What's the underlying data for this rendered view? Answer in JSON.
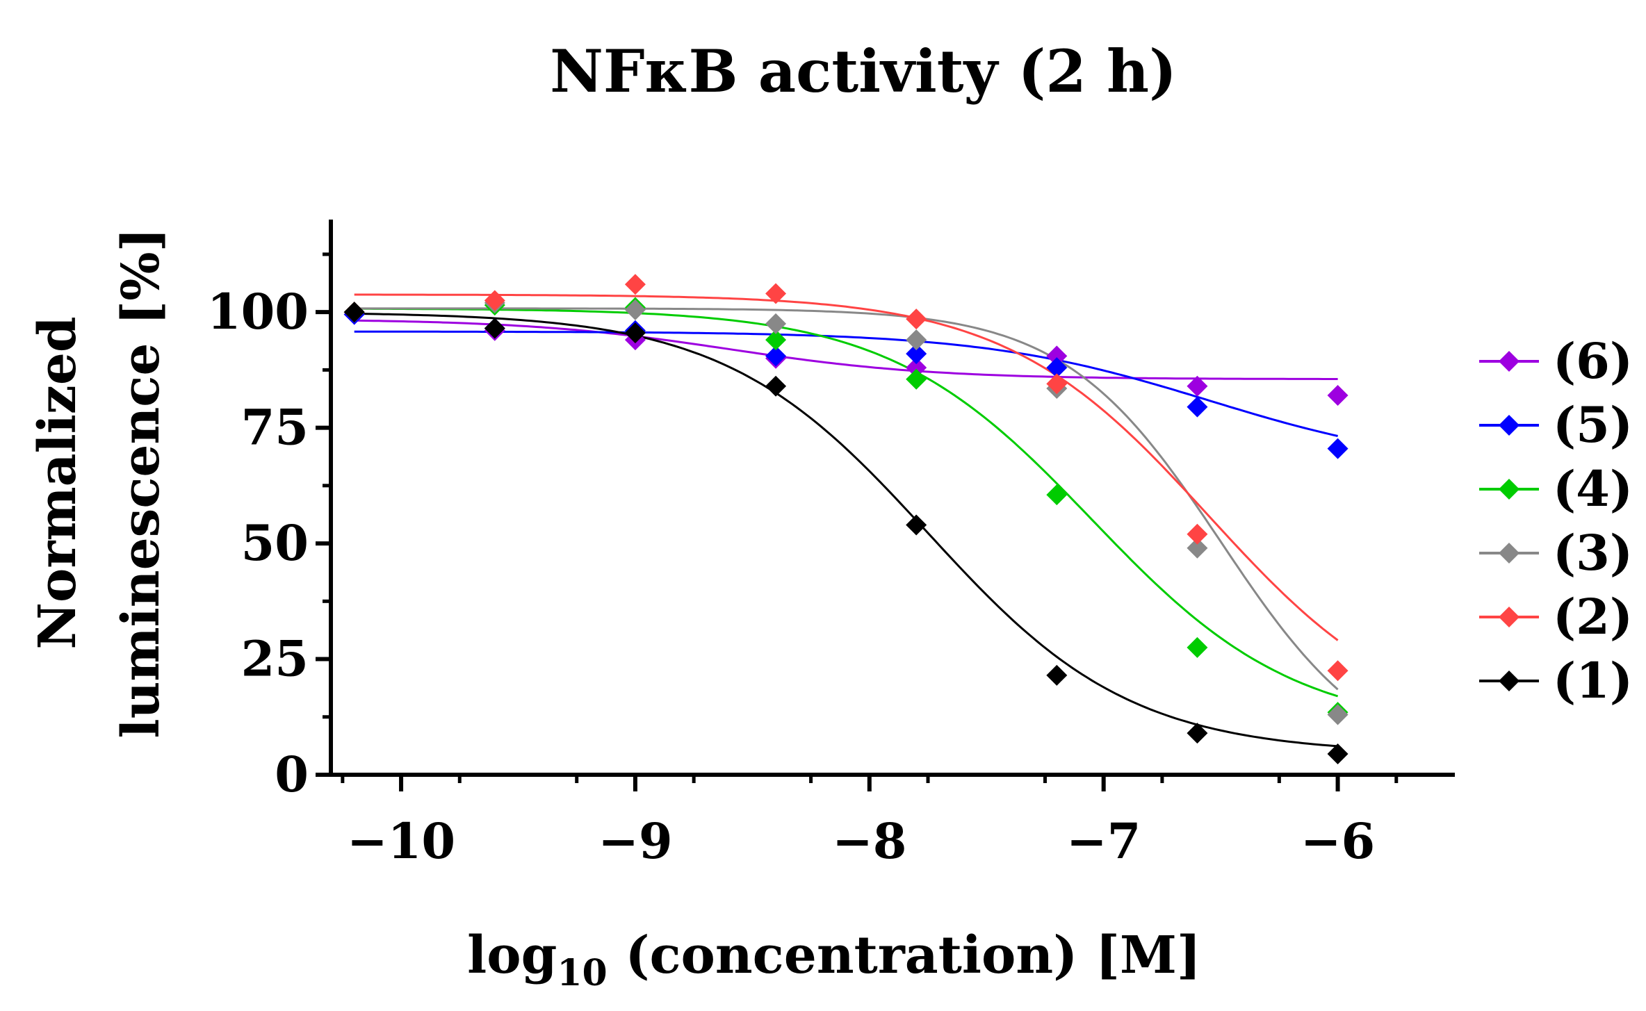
{
  "chart_data": {
    "type": "scatter",
    "title": "NFκB activity (2 h)",
    "xlabel_main": "log",
    "xlabel_sub": "10",
    "xlabel_rest": " (concentration) [M]",
    "ylabel_line1": "Normalized",
    "ylabel_line2": "luminescence [%]",
    "xlim": [
      -10.3,
      -5.5
    ],
    "ylim": [
      0,
      120
    ],
    "x_ticks": [
      -10,
      -9,
      -8,
      -7,
      -6
    ],
    "x_tick_labels": [
      "−10",
      "−9",
      "−8",
      "−7",
      "−6"
    ],
    "y_ticks": [
      0,
      25,
      50,
      75,
      100
    ],
    "y_tick_labels": [
      "0",
      "25",
      "50",
      "75",
      "100"
    ],
    "legend_position": "right",
    "series": [
      {
        "name": "(6)",
        "color": "#9d00e0",
        "x": [
          -10.2,
          -9.6,
          -9.0,
          -8.4,
          -7.8,
          -7.2,
          -6.6,
          -6.0
        ],
        "y": [
          99.5,
          96,
          94,
          90,
          88,
          90.5,
          84,
          82
        ],
        "fit": {
          "top": 98.5,
          "bottom": 85.5,
          "logEC50": -8.6,
          "hill": 1.0
        }
      },
      {
        "name": "(5)",
        "color": "#0000ff",
        "x": [
          -10.2,
          -9.6,
          -9.0,
          -8.4,
          -7.8,
          -7.2,
          -6.6,
          -6.0
        ],
        "y": [
          99.5,
          96.5,
          96,
          90.5,
          91,
          88,
          79.5,
          70.5
        ],
        "fit": {
          "top": 95.8,
          "bottom": 66,
          "logEC50": -6.55,
          "hill": 0.9
        }
      },
      {
        "name": "(4)",
        "color": "#00cc00",
        "x": [
          -10.2,
          -9.6,
          -9.0,
          -8.4,
          -7.8,
          -7.2,
          -6.6,
          -6.0
        ],
        "y": [
          100,
          101.5,
          101,
          94,
          85.5,
          60.5,
          27.5,
          13.5
        ],
        "fit": {
          "top": 100.8,
          "bottom": 9.5,
          "logEC50": -7.05,
          "hill": 1.0
        }
      },
      {
        "name": "(3)",
        "color": "#888888",
        "x": [
          -10.2,
          -9.6,
          -9.0,
          -8.4,
          -7.8,
          -7.2,
          -6.6,
          -6.0
        ],
        "y": [
          100,
          102,
          100.5,
          97.5,
          94,
          83.5,
          49,
          13
        ],
        "fit": {
          "top": 100.8,
          "bottom": 0,
          "logEC50": -6.5,
          "hill": 1.3
        }
      },
      {
        "name": "(2)",
        "color": "#ff4444",
        "x": [
          -10.2,
          -9.6,
          -9.0,
          -8.4,
          -7.8,
          -7.2,
          -6.6,
          -6.0
        ],
        "y": [
          100,
          102.5,
          106,
          104,
          98.5,
          84.5,
          52,
          22.5
        ],
        "fit": {
          "top": 103.8,
          "bottom": 8,
          "logEC50": -6.55,
          "hill": 1.0
        }
      },
      {
        "name": "(1)",
        "color": "#000000",
        "x": [
          -10.2,
          -9.6,
          -9.0,
          -8.4,
          -7.8,
          -7.2,
          -6.6,
          -6.0
        ],
        "y": [
          100,
          96.5,
          95.5,
          84,
          54,
          21.5,
          9,
          4.5
        ],
        "fit": {
          "top": 100,
          "bottom": 4.5,
          "logEC50": -7.75,
          "hill": 1.0
        }
      }
    ]
  }
}
